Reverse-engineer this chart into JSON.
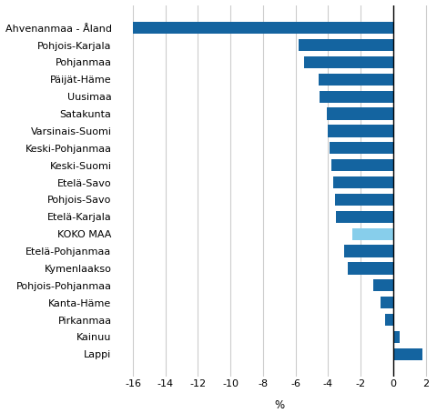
{
  "categories": [
    "Ahvenanmaa - Åland",
    "Pohjois-Karjala",
    "Pohjanmaa",
    "Päijät-Häme",
    "Uusimaa",
    "Satakunta",
    "Varsinais-Suomi",
    "Keski-Pohjanmaa",
    "Keski-Suomi",
    "Etelä-Savo",
    "Pohjois-Savo",
    "Etelä-Karjala",
    "KOKO MAA",
    "Etelä-Pohjanmaa",
    "Kymenlaakso",
    "Pohjois-Pohjanmaa",
    "Kanta-Häme",
    "Pirkanmaa",
    "Kainuu",
    "Lappi"
  ],
  "values": [
    -16.0,
    -5.8,
    -5.5,
    -4.6,
    -4.5,
    -4.1,
    -4.0,
    -3.9,
    -3.8,
    -3.7,
    -3.6,
    -3.5,
    -2.5,
    -3.0,
    -2.8,
    -1.2,
    -0.8,
    -0.5,
    0.4,
    1.8
  ],
  "colors": [
    "#1464a0",
    "#1464a0",
    "#1464a0",
    "#1464a0",
    "#1464a0",
    "#1464a0",
    "#1464a0",
    "#1464a0",
    "#1464a0",
    "#1464a0",
    "#1464a0",
    "#1464a0",
    "#87ceeb",
    "#1464a0",
    "#1464a0",
    "#1464a0",
    "#1464a0",
    "#1464a0",
    "#1464a0",
    "#1464a0"
  ],
  "xlim": [
    -17,
    3
  ],
  "xticks": [
    -16,
    -14,
    -12,
    -10,
    -8,
    -6,
    -4,
    -2,
    0,
    2
  ],
  "xtick_labels": [
    "-16",
    "-14",
    "-12",
    "-10",
    "-8",
    "-6",
    "-4",
    "-2",
    "0",
    "2"
  ],
  "xlabel": "%",
  "background_color": "#ffffff",
  "grid_color": "#cccccc",
  "bar_height": 0.7,
  "tick_fontsize": 8.0,
  "label_fontsize": 8.5
}
